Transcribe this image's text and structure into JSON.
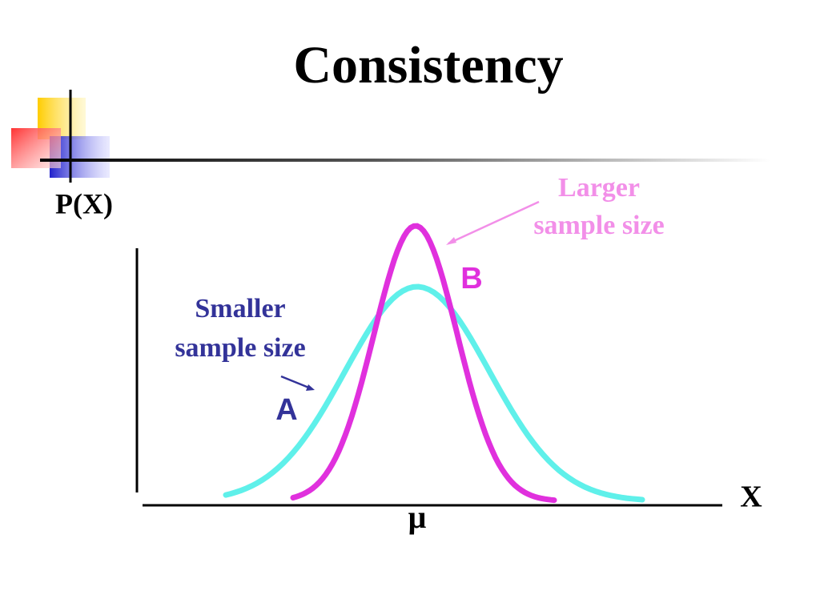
{
  "title": "Consistency",
  "axes": {
    "y_label": "P(X)",
    "x_label": "X",
    "center_label": "μ"
  },
  "curves": [
    {
      "letter": "A",
      "label": [
        "Smaller",
        "sample size"
      ]
    },
    {
      "letter": "B",
      "label": [
        "Larger",
        "sample size"
      ]
    }
  ]
}
